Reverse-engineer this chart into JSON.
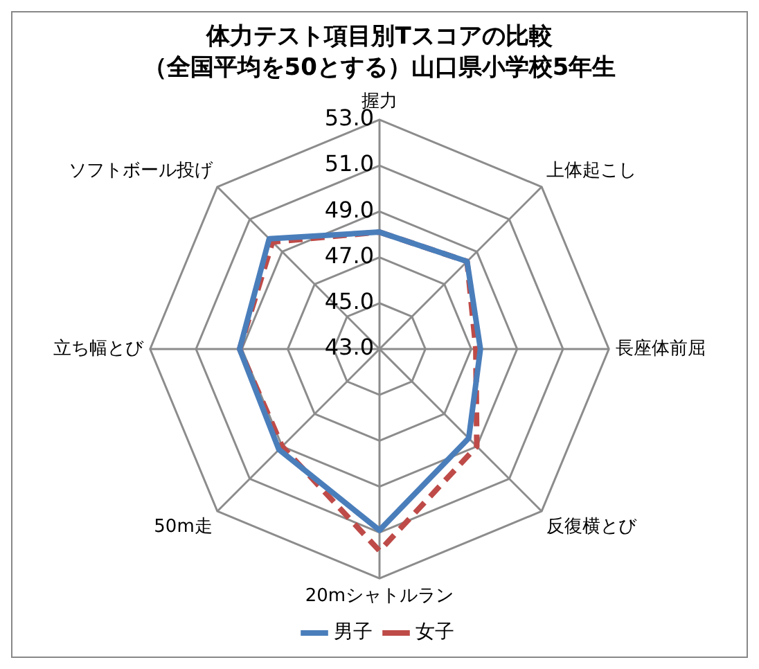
{
  "chart_data": {
    "type": "radar",
    "title": "体力テスト項目別Tスコアの比較",
    "subtitle": "（全国平均を50とする）山口県小学校5年生",
    "categories": [
      "握力",
      "上体起こし",
      "長座体前屈",
      "反復横とび",
      "20mシャトルラン",
      "50m走",
      "立ち幅とび",
      "ソフトボール投げ"
    ],
    "series": [
      {
        "name": "男子",
        "color": "#4a7ebb",
        "line_style": "solid",
        "values": [
          48.1,
          48.4,
          47.4,
          48.5,
          50.9,
          49.2,
          49.1,
          49.8
        ]
      },
      {
        "name": "女子",
        "color": "#be4b48",
        "line_style": "dashed",
        "values": [
          48.1,
          48.4,
          47.2,
          49.0,
          51.8,
          49.0,
          49.1,
          49.6
        ]
      }
    ],
    "ylim": [
      43,
      53
    ],
    "yticks": [
      {
        "value": 43,
        "label": "43.0"
      },
      {
        "value": 45,
        "label": "45.0"
      },
      {
        "value": 47,
        "label": "47.0"
      },
      {
        "value": 49,
        "label": "49.0"
      },
      {
        "value": 51,
        "label": "51.0"
      },
      {
        "value": 53,
        "label": "53.0"
      }
    ],
    "grid": true,
    "legend": "bottom",
    "marker": "none"
  }
}
